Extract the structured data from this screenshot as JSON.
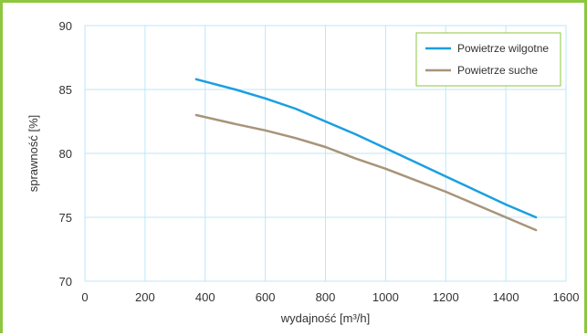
{
  "chart_data": {
    "type": "line",
    "title": "",
    "xlabel": "wydajność [m³/h]",
    "ylabel": "sprawność [%]",
    "xlim": [
      0,
      1600
    ],
    "ylim": [
      70,
      90
    ],
    "xticks": [
      0,
      200,
      400,
      600,
      800,
      1000,
      1200,
      1400,
      1600
    ],
    "yticks": [
      70,
      75,
      80,
      85,
      90
    ],
    "grid": true,
    "legend_position": "top-right",
    "series": [
      {
        "name": "Powietrze wilgotne",
        "color": "#1a9fe0",
        "x": [
          370,
          500,
          600,
          700,
          800,
          900,
          1000,
          1100,
          1200,
          1300,
          1400,
          1500
        ],
        "y": [
          85.8,
          85.0,
          84.3,
          83.5,
          82.5,
          81.5,
          80.4,
          79.3,
          78.2,
          77.1,
          76.0,
          75.0
        ]
      },
      {
        "name": "Powietrze suche",
        "color": "#a89478",
        "x": [
          370,
          500,
          600,
          700,
          800,
          900,
          1000,
          1100,
          1200,
          1300,
          1400,
          1500
        ],
        "y": [
          83.0,
          82.3,
          81.8,
          81.2,
          80.5,
          79.6,
          78.8,
          77.9,
          77.0,
          76.0,
          75.0,
          74.0
        ]
      }
    ]
  }
}
